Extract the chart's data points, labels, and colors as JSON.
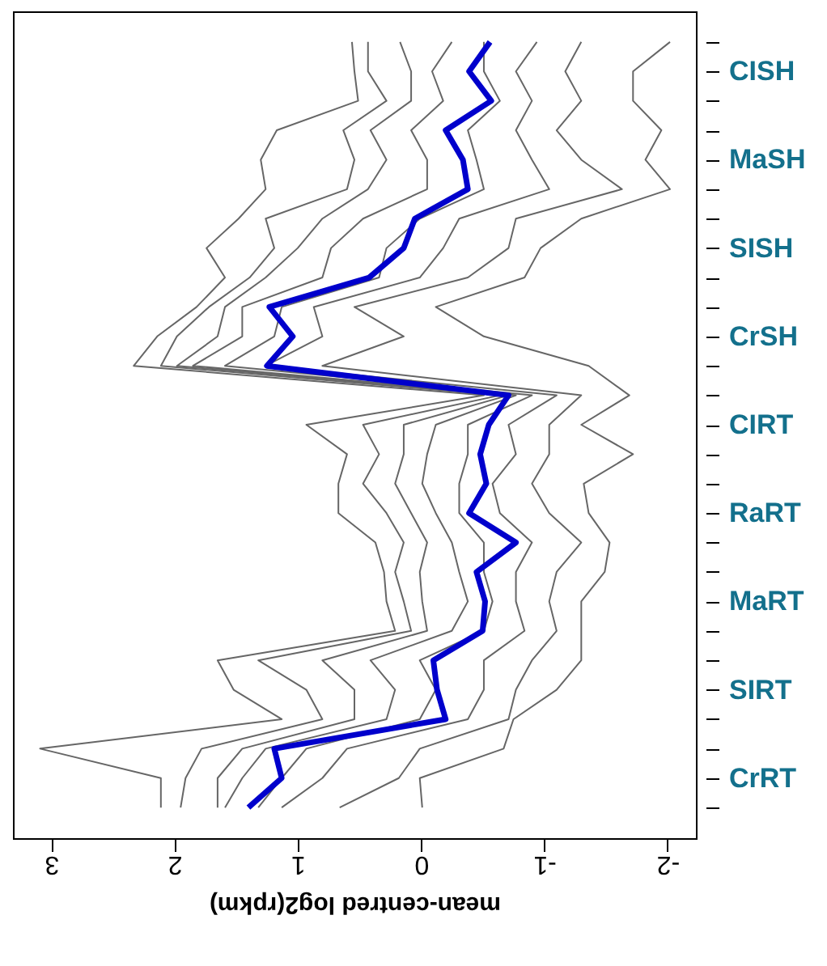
{
  "chart_data": {
    "type": "line",
    "orientation": "horizontal",
    "xlabel": "mean-centred log2(rpkm)",
    "categories": [
      null,
      "CISH",
      null,
      null,
      "MaSH",
      null,
      null,
      "SISH",
      null,
      null,
      "CrSH",
      null,
      null,
      "CIRT",
      null,
      null,
      "RaRT",
      null,
      null,
      "MaRT",
      null,
      null,
      "SIRT",
      null,
      null,
      "CrRT",
      null
    ],
    "xlim": [
      3.31,
      -2.23
    ],
    "xticks": [
      3,
      2,
      1,
      0,
      -1,
      -2
    ],
    "grid": false,
    "marker": "none",
    "line_style": "solid",
    "series": [
      {
        "color": "#666666",
        "values": [
          0.56,
          0.54,
          0.51,
          1.17,
          1.3,
          1.26,
          1.48,
          1.74,
          1.59,
          1.82,
          2.14,
          2.33,
          -0.51,
          0.93,
          0.6,
          0.67,
          0.67,
          0.37,
          0.3,
          0.28,
          0.21,
          1.65,
          1.52,
          1.13,
          3.09,
          2.11,
          2.11
        ]
      },
      {
        "color": "#666666",
        "values": [
          0.43,
          0.43,
          0.28,
          0.63,
          0.54,
          0.6,
          1.26,
          1.19,
          1.39,
          1.72,
          1.98,
          2.11,
          -0.64,
          0.47,
          0.34,
          0.47,
          0.28,
          0.14,
          0.21,
          0.14,
          0.08,
          1.32,
          0.93,
          0.8,
          1.78,
          1.91,
          1.95
        ]
      },
      {
        "color": "#666666",
        "values": [
          0.17,
          0.08,
          0.08,
          0.41,
          0.28,
          0.43,
          0.8,
          1.0,
          1.26,
          1.59,
          1.65,
          1.98,
          -0.71,
          0.14,
          0.14,
          0.21,
          0.08,
          -0.05,
          0.01,
          -0.01,
          -0.05,
          0.8,
          0.54,
          0.54,
          1.45,
          1.65,
          1.65
        ]
      },
      {
        "color": "#666666",
        "values": [
          -0.25,
          -0.09,
          -0.18,
          0.08,
          -0.05,
          -0.05,
          0.47,
          0.73,
          0.8,
          1.45,
          1.45,
          1.85,
          -0.77,
          -0.12,
          -0.05,
          -0.01,
          -0.12,
          -0.25,
          -0.31,
          -0.38,
          -0.25,
          0.41,
          0.21,
          0.28,
          1.26,
          1.45,
          1.59
        ]
      },
      {
        "color": "#666666",
        "values": [
          -0.51,
          -0.51,
          -0.64,
          -0.38,
          -0.45,
          -0.51,
          0.01,
          0.28,
          0.34,
          1.13,
          1.19,
          1.59,
          -0.9,
          -0.38,
          -0.38,
          -0.31,
          -0.31,
          -0.51,
          -0.51,
          -0.58,
          -0.51,
          0.01,
          -0.12,
          0.01,
          0.93,
          1.13,
          1.32
        ]
      },
      {
        "color": "#666666",
        "values": [
          -0.94,
          -0.77,
          -0.9,
          -0.77,
          -0.9,
          -1.04,
          -0.31,
          -0.18,
          0.01,
          0.87,
          0.8,
          1.26,
          -1.1,
          -0.71,
          -0.77,
          -0.58,
          -0.64,
          -0.9,
          -0.77,
          -0.77,
          -0.84,
          -0.51,
          -0.51,
          -0.38,
          0.6,
          0.8,
          1.13
        ]
      },
      {
        "color": "#666666",
        "values": [
          -1.3,
          -1.17,
          -1.3,
          -1.1,
          -1.3,
          -1.63,
          -0.77,
          -0.71,
          -0.38,
          0.54,
          0.14,
          0.8,
          -1.3,
          -1.04,
          -1.04,
          -0.9,
          -1.04,
          -1.3,
          -1.1,
          -1.04,
          -1.1,
          -0.9,
          -0.77,
          -0.71,
          0.01,
          0.18,
          0.66
        ]
      },
      {
        "color": "#666666",
        "values": [
          -2.02,
          -1.72,
          -1.72,
          -1.95,
          -1.82,
          -2.02,
          -1.3,
          -0.97,
          -0.84,
          -0.12,
          -0.51,
          -1.36,
          -1.69,
          -1.3,
          -1.72,
          -1.32,
          -1.36,
          -1.53,
          -1.49,
          -1.3,
          -1.3,
          -1.3,
          -1.1,
          -0.75,
          -0.67,
          0.01,
          -0.01
        ]
      },
      {
        "color": "#0000cc",
        "values": [
          -0.56,
          -0.39,
          -0.57,
          -0.2,
          -0.34,
          -0.38,
          0.05,
          0.14,
          0.42,
          1.23,
          1.04,
          1.25,
          -0.71,
          -0.55,
          -0.48,
          -0.53,
          -0.39,
          -0.77,
          -0.45,
          -0.52,
          -0.5,
          -0.1,
          -0.13,
          -0.2,
          1.19,
          1.13,
          1.4
        ]
      }
    ]
  }
}
